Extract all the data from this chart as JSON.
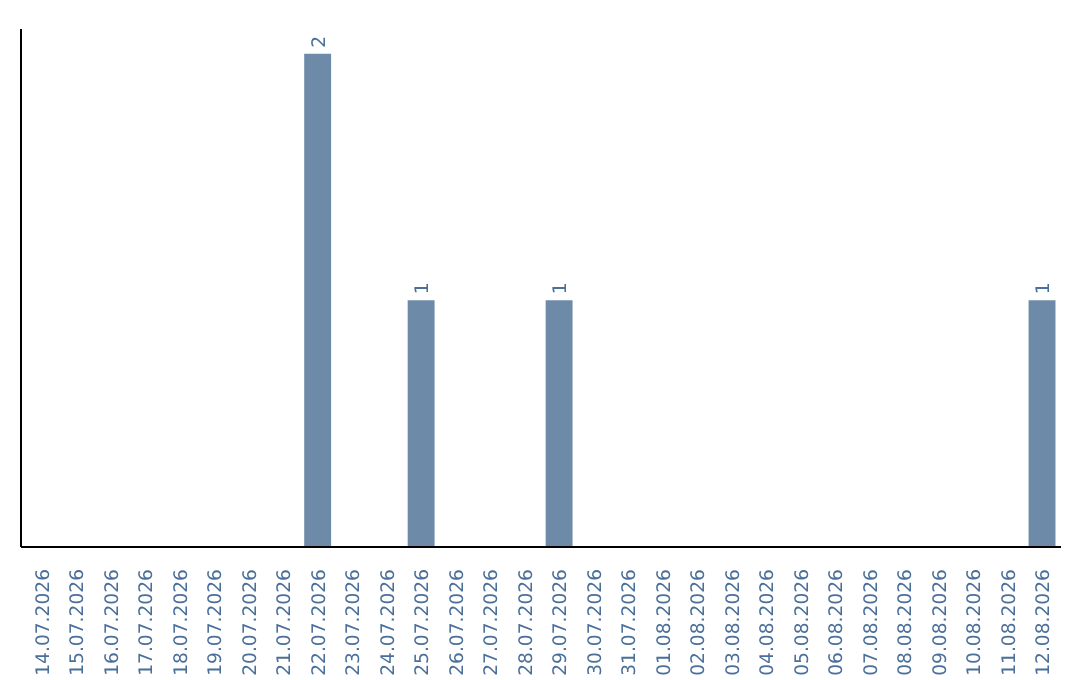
{
  "chart_data": {
    "type": "bar",
    "categories": [
      "14.07.2026",
      "15.07.2026",
      "16.07.2026",
      "17.07.2026",
      "18.07.2026",
      "19.07.2026",
      "20.07.2026",
      "21.07.2026",
      "22.07.2026",
      "23.07.2026",
      "24.07.2026",
      "25.07.2026",
      "26.07.2026",
      "27.07.2026",
      "28.07.2026",
      "29.07.2026",
      "30.07.2026",
      "31.07.2026",
      "01.08.2026",
      "02.08.2026",
      "03.08.2026",
      "04.08.2026",
      "05.08.2026",
      "06.08.2026",
      "07.08.2026",
      "08.08.2026",
      "09.08.2026",
      "10.08.2026",
      "11.08.2026",
      "12.08.2026"
    ],
    "values": [
      0,
      0,
      0,
      0,
      0,
      0,
      0,
      0,
      2,
      0,
      0,
      1,
      0,
      0,
      0,
      1,
      0,
      0,
      0,
      0,
      0,
      0,
      0,
      0,
      0,
      0,
      0,
      0,
      0,
      1
    ],
    "value_labels": [
      null,
      null,
      null,
      null,
      null,
      null,
      null,
      null,
      "2",
      null,
      null,
      "1",
      null,
      null,
      null,
      "1",
      null,
      null,
      null,
      null,
      null,
      null,
      null,
      null,
      null,
      null,
      null,
      null,
      null,
      "1"
    ],
    "color": "#6d8ba8",
    "ylim": [
      0,
      2.1
    ],
    "tick_labels": "x",
    "grid": false
  }
}
